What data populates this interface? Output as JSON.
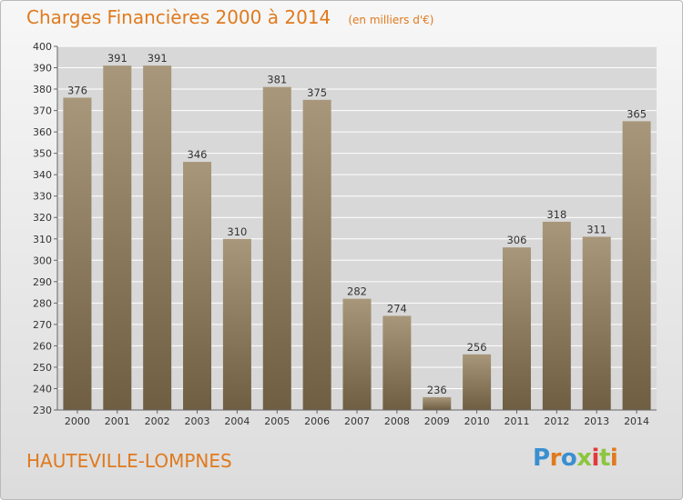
{
  "header": {
    "title": "Charges Financières 2000 à 2014",
    "subtitle": "(en milliers d'€)"
  },
  "footer": {
    "commune": "HAUTEVILLE-LOMPNES",
    "logo_text": "Proxiti",
    "logo_colors": [
      "#3a8fd0",
      "#e07a1e",
      "#3a8fd0",
      "#8cc63f",
      "#e03a3a",
      "#8cc63f",
      "#e07a1e"
    ]
  },
  "chart_data": {
    "type": "bar",
    "categories": [
      "2000",
      "2001",
      "2002",
      "2003",
      "2004",
      "2005",
      "2006",
      "2007",
      "2008",
      "2009",
      "2010",
      "2011",
      "2012",
      "2013",
      "2014"
    ],
    "values": [
      376,
      391,
      391,
      346,
      310,
      381,
      375,
      282,
      274,
      236,
      256,
      306,
      318,
      311,
      365
    ],
    "title": "Charges Financières 2000 à 2014",
    "subtitle": "(en milliers d'€)",
    "ylim": [
      230,
      400
    ],
    "yticks": [
      230,
      240,
      250,
      260,
      270,
      280,
      290,
      300,
      310,
      320,
      330,
      340,
      350,
      360,
      370,
      380,
      390,
      400
    ],
    "grid": true,
    "colors": {
      "bar_top": "#a8977a",
      "bar_bottom": "#6f5e42",
      "grid": "#ffffff",
      "axis": "#666666"
    }
  }
}
